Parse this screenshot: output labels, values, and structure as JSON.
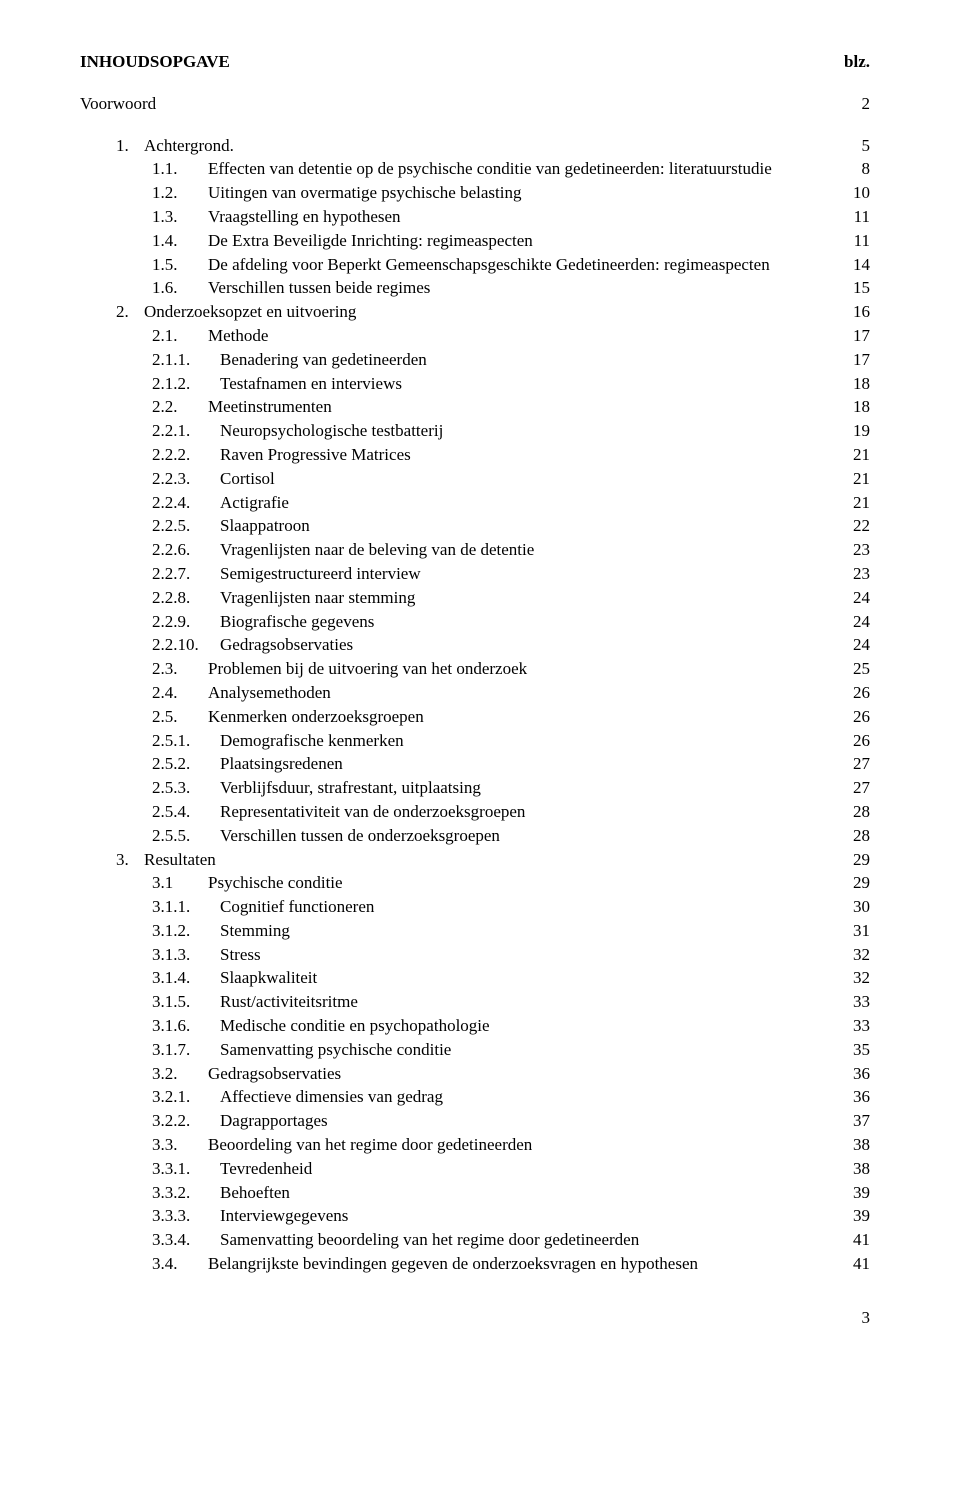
{
  "header": {
    "title": "INHOUDSOPGAVE",
    "page_label": "blz."
  },
  "entries": [
    {
      "level": 0,
      "num": "",
      "text": "Voorwoord",
      "page": "2",
      "spaceAfter": true
    },
    {
      "level": 1,
      "num": "1.",
      "numClass": "num-short",
      "text": "Achtergrond.",
      "page": "5"
    },
    {
      "level": 2,
      "num": "1.1.",
      "text": "Effecten van detentie op de psychische conditie van gedetineerden: literatuurstudie",
      "page": "8"
    },
    {
      "level": 2,
      "num": "1.2.",
      "text": "Uitingen van overmatige psychische belasting",
      "page": "10"
    },
    {
      "level": 2,
      "num": "1.3.",
      "text": "Vraagstelling en hypothesen",
      "page": "11"
    },
    {
      "level": 2,
      "num": "1.4.",
      "text": "De Extra Beveiligde Inrichting: regimeaspecten",
      "page": "11"
    },
    {
      "level": 2,
      "num": "1.5.",
      "text": "De afdeling voor Beperkt Gemeenschapsgeschikte Gedetineerden: regimeaspecten",
      "page": "14"
    },
    {
      "level": 2,
      "num": "1.6.",
      "text": "Verschillen tussen beide regimes",
      "page": "15"
    },
    {
      "level": 1,
      "num": "2.",
      "numClass": "num-short",
      "text": "Onderzoeksopzet en uitvoering",
      "page": "16"
    },
    {
      "level": 2,
      "num": "2.1.",
      "text": "Methode",
      "page": "17"
    },
    {
      "level": 3,
      "num": "2.1.1.",
      "text": "Benadering van gedetineerden",
      "page": "17"
    },
    {
      "level": 3,
      "num": "2.1.2.",
      "text": "Testafnamen en interviews",
      "page": "18"
    },
    {
      "level": 2,
      "num": "2.2.",
      "text": "Meetinstrumenten",
      "page": "18"
    },
    {
      "level": 3,
      "num": "2.2.1.",
      "text": "Neuropsychologische testbatterij",
      "page": "19"
    },
    {
      "level": 3,
      "num": "2.2.2.",
      "text": "Raven Progressive Matrices",
      "page": "21"
    },
    {
      "level": 3,
      "num": "2.2.3.",
      "text": "Cortisol",
      "page": "21"
    },
    {
      "level": 3,
      "num": "2.2.4.",
      "text": "Actigrafie",
      "page": "21"
    },
    {
      "level": 3,
      "num": "2.2.5.",
      "text": "Slaappatroon",
      "page": "22"
    },
    {
      "level": 3,
      "num": "2.2.6.",
      "text": "Vragenlijsten naar de beleving van de detentie",
      "page": "23"
    },
    {
      "level": 3,
      "num": "2.2.7.",
      "text": "Semigestructureerd interview",
      "page": "23"
    },
    {
      "level": 3,
      "num": "2.2.8.",
      "text": "Vragenlijsten naar stemming",
      "page": "24"
    },
    {
      "level": 3,
      "num": "2.2.9.",
      "text": "Biografische gegevens",
      "page": "24"
    },
    {
      "level": 3,
      "num": "2.2.10.",
      "text": "Gedragsobservaties",
      "page": "24"
    },
    {
      "level": 2,
      "num": "2.3.",
      "text": "Problemen bij de uitvoering van het onderzoek",
      "page": "25"
    },
    {
      "level": 2,
      "num": "2.4.",
      "text": "Analysemethoden",
      "page": "26"
    },
    {
      "level": 2,
      "num": "2.5.",
      "text": "Kenmerken onderzoeksgroepen",
      "page": "26"
    },
    {
      "level": 3,
      "num": "2.5.1.",
      "text": "Demografische kenmerken",
      "page": "26"
    },
    {
      "level": 3,
      "num": "2.5.2.",
      "text": "Plaatsingsredenen",
      "page": "27"
    },
    {
      "level": 3,
      "num": "2.5.3.",
      "text": "Verblijfsduur, strafrestant, uitplaatsing",
      "page": "27"
    },
    {
      "level": 3,
      "num": "2.5.4.",
      "text": "Representativiteit van de onderzoeksgroepen",
      "page": "28"
    },
    {
      "level": 3,
      "num": "2.5.5.",
      "text": "Verschillen tussen de onderzoeksgroepen",
      "page": "28"
    },
    {
      "level": 1,
      "num": "3.",
      "numClass": "num-short",
      "text": "Resultaten",
      "page": "29"
    },
    {
      "level": 2,
      "num": "3.1",
      "text": "Psychische conditie",
      "page": "29"
    },
    {
      "level": 3,
      "num": "3.1.1.",
      "text": "Cognitief functioneren",
      "page": "30"
    },
    {
      "level": 3,
      "num": "3.1.2.",
      "text": "Stemming",
      "page": "31"
    },
    {
      "level": 3,
      "num": "3.1.3.",
      "text": "Stress",
      "page": "32"
    },
    {
      "level": 3,
      "num": "3.1.4.",
      "text": "Slaapkwaliteit",
      "page": "32"
    },
    {
      "level": 3,
      "num": "3.1.5.",
      "text": "Rust/activiteitsritme",
      "page": "33"
    },
    {
      "level": 3,
      "num": "3.1.6.",
      "text": "Medische conditie en psychopathologie",
      "page": "33"
    },
    {
      "level": 3,
      "num": "3.1.7.",
      "text": "Samenvatting psychische conditie",
      "page": "35"
    },
    {
      "level": 2,
      "num": "3.2.",
      "text": "Gedragsobservaties",
      "page": "36"
    },
    {
      "level": 3,
      "num": "3.2.1.",
      "text": "Affectieve dimensies van gedrag",
      "page": "36"
    },
    {
      "level": 3,
      "num": "3.2.2.",
      "text": "Dagrapportages",
      "page": "37"
    },
    {
      "level": 2,
      "num": "3.3.",
      "text": "Beoordeling van het regime door gedetineerden",
      "page": "38"
    },
    {
      "level": 3,
      "num": "3.3.1.",
      "text": "Tevredenheid",
      "page": "38"
    },
    {
      "level": 3,
      "num": "3.3.2.",
      "text": "Behoeften",
      "page": "39"
    },
    {
      "level": 3,
      "num": "3.3.3.",
      "text": "Interviewgegevens",
      "page": "39"
    },
    {
      "level": 3,
      "num": "3.3.4.",
      "text": "Samenvatting beoordeling van het regime door gedetineerden",
      "page": "41"
    },
    {
      "level": 2,
      "num": "3.4.",
      "text": "Belangrijkste bevindingen gegeven de onderzoeksvragen en hypothesen",
      "page": "41"
    }
  ],
  "footer": {
    "page_number": "3"
  }
}
